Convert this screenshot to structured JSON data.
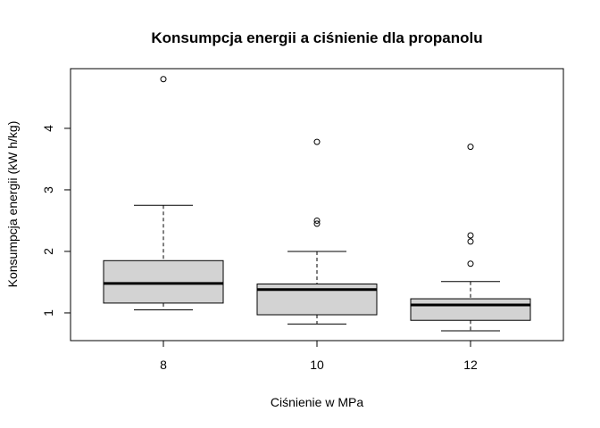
{
  "chart_data": {
    "type": "boxplot",
    "title": "Konsumpcja energii a ciśnienie dla propanolu",
    "xlabel": "Ciśnienie w MPa",
    "ylabel": "Konsumpcja energii (kW h/kg)",
    "categories": [
      "8",
      "10",
      "12"
    ],
    "yticks": [
      1,
      2,
      3,
      4
    ],
    "ylim": [
      0.55,
      4.97
    ],
    "box_fill": "#d3d3d3",
    "grid": false,
    "boxes": [
      {
        "category": "8",
        "whisker_low": 1.05,
        "q1": 1.16,
        "median": 1.48,
        "q3": 1.85,
        "whisker_high": 2.75,
        "outliers": [
          4.8
        ]
      },
      {
        "category": "10",
        "whisker_low": 0.82,
        "q1": 0.97,
        "median": 1.38,
        "q3": 1.47,
        "whisker_high": 2.0,
        "outliers": [
          3.78,
          2.5,
          2.45
        ]
      },
      {
        "category": "12",
        "whisker_low": 0.71,
        "q1": 0.88,
        "median": 1.13,
        "q3": 1.23,
        "whisker_high": 1.51,
        "outliers": [
          3.7,
          2.26,
          2.16,
          1.8
        ]
      }
    ]
  }
}
